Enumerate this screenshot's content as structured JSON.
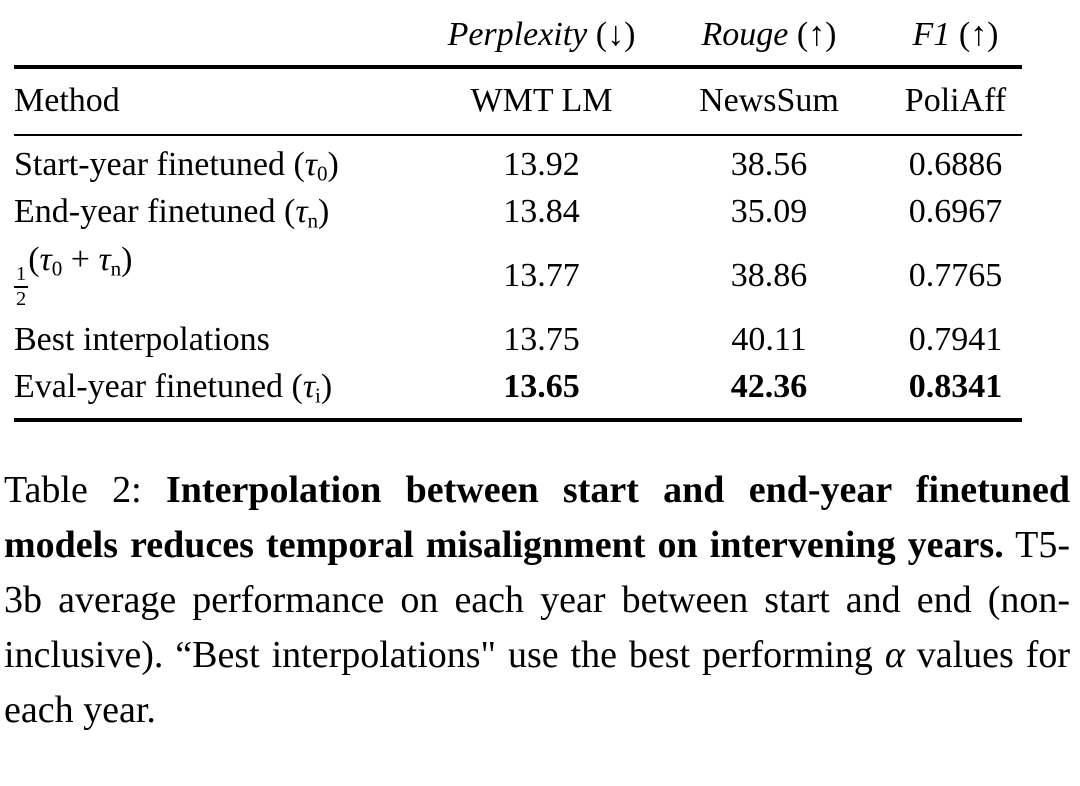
{
  "table": {
    "group_headers": [
      {
        "label": "Perplexity",
        "suffix": "(↓)"
      },
      {
        "label": "Rouge",
        "suffix": "(↑)"
      },
      {
        "label": "F1",
        "suffix": "(↑)"
      }
    ],
    "col_headers": [
      "Method",
      "WMT LM",
      "NewsSum",
      "PoliAff"
    ],
    "rows": [
      {
        "method": [
          {
            "t": "Start-year finetuned ("
          },
          {
            "m": "τ",
            "s": "0"
          },
          {
            "t": ")"
          }
        ],
        "values": [
          "13.92",
          "38.56",
          "0.6886"
        ],
        "bold": false
      },
      {
        "method": [
          {
            "t": "End-year finetuned ("
          },
          {
            "m": "τ",
            "s": "n"
          },
          {
            "t": ")"
          }
        ],
        "values": [
          "13.84",
          "35.09",
          "0.6967"
        ],
        "bold": false
      },
      {
        "method": [
          {
            "frac": [
              "1",
              "2"
            ]
          },
          {
            "t": "("
          },
          {
            "m": "τ",
            "s": "0"
          },
          {
            "t": " + "
          },
          {
            "m": "τ",
            "s": "n"
          },
          {
            "t": ")"
          }
        ],
        "values": [
          "13.77",
          "38.86",
          "0.7765"
        ],
        "bold": false
      },
      {
        "method": [
          {
            "t": "Best interpolations"
          }
        ],
        "values": [
          "13.75",
          "40.11",
          "0.7941"
        ],
        "bold": false
      },
      {
        "method": [
          {
            "t": "Eval-year finetuned ("
          },
          {
            "m": "τ",
            "s": "i"
          },
          {
            "t": ")"
          }
        ],
        "values": [
          "13.65",
          "42.36",
          "0.8341"
        ],
        "bold": true
      }
    ]
  },
  "caption": {
    "segments": [
      {
        "text": "Table 2:  ",
        "style": "normal"
      },
      {
        "text": "Interpolation between start and end-year finetuned models reduces temporal misalignment on intervening years.",
        "style": "bold"
      },
      {
        "text": " T5-3b average performance on each year between start and end (non-inclusive). “Best interpolations\" use the best performing ",
        "style": "normal"
      },
      {
        "text": "α",
        "style": "italic"
      },
      {
        "text": " values for each year.",
        "style": "normal"
      }
    ]
  },
  "colors": {
    "background": "#ffffff",
    "text": "#000000",
    "rule": "#000000"
  }
}
